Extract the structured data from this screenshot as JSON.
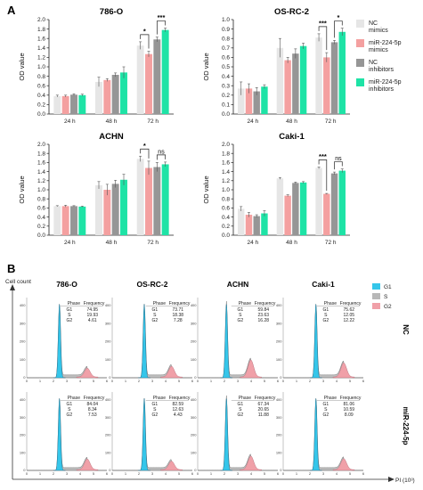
{
  "panels": {
    "a": "A",
    "b": "B"
  },
  "legend": {
    "items": [
      {
        "label": "NC\nmimics",
        "color": "#e6e6e6"
      },
      {
        "label": "miR-224-5p\nmimics",
        "color": "#f4a0a0"
      },
      {
        "label": "NC\ninhibitors",
        "color": "#969696"
      },
      {
        "label": "miR-224-5p\ninhibitors",
        "color": "#1ee3a6"
      }
    ]
  },
  "chart_data": [
    {
      "type": "bar",
      "title": "786-O",
      "ylabel": "OD value",
      "categories": [
        "24 h",
        "48 h",
        "72 h"
      ],
      "ylim": [
        0,
        2.0
      ],
      "yticks": [
        "0.0",
        "0.2",
        "0.4",
        "0.6",
        "0.8",
        "1.0",
        "1.2",
        "1.4",
        "1.6",
        "1.8",
        "2.0"
      ],
      "series": [
        {
          "name": "NC mimics",
          "values": [
            0.38,
            0.68,
            1.45
          ],
          "err": [
            0.02,
            0.1,
            0.08
          ]
        },
        {
          "name": "miR-224-5p mimics",
          "values": [
            0.38,
            0.72,
            1.27
          ],
          "err": [
            0.02,
            0.03,
            0.06
          ]
        },
        {
          "name": "NC inhibitors",
          "values": [
            0.41,
            0.83,
            1.58
          ],
          "err": [
            0.02,
            0.04,
            0.05
          ]
        },
        {
          "name": "miR-224-5p inhibitors",
          "values": [
            0.4,
            0.88,
            1.78
          ],
          "err": [
            0.02,
            0.12,
            0.04
          ]
        }
      ],
      "annotations": [
        {
          "text": "*",
          "group": 2,
          "from": 0,
          "to": 1
        },
        {
          "text": "***",
          "group": 2,
          "from": 2,
          "to": 3
        }
      ]
    },
    {
      "type": "bar",
      "title": "OS-RC-2",
      "ylabel": "OD value",
      "categories": [
        "24 h",
        "48 h",
        "72 h"
      ],
      "ylim": [
        0,
        1.0
      ],
      "yticks": [
        "0.0",
        "0.1",
        "0.2",
        "0.3",
        "0.4",
        "0.5",
        "0.6",
        "0.7",
        "0.8",
        "0.9",
        "1.0"
      ],
      "series": [
        {
          "name": "NC mimics",
          "values": [
            0.27,
            0.7,
            0.81
          ],
          "err": [
            0.07,
            0.1,
            0.04
          ]
        },
        {
          "name": "miR-224-5p mimics",
          "values": [
            0.27,
            0.57,
            0.6
          ],
          "err": [
            0.05,
            0.03,
            0.05
          ]
        },
        {
          "name": "NC inhibitors",
          "values": [
            0.24,
            0.64,
            0.76
          ],
          "err": [
            0.04,
            0.05,
            0.02
          ]
        },
        {
          "name": "miR-224-5p inhibitors",
          "values": [
            0.29,
            0.72,
            0.87
          ],
          "err": [
            0.02,
            0.03,
            0.04
          ]
        }
      ],
      "annotations": [
        {
          "text": "***",
          "group": 2,
          "from": 0,
          "to": 1
        },
        {
          "text": "*",
          "group": 2,
          "from": 2,
          "to": 3
        }
      ]
    },
    {
      "type": "bar",
      "title": "ACHN",
      "ylabel": "OD value",
      "categories": [
        "24 h",
        "48 h",
        "72 h"
      ],
      "ylim": [
        0,
        2.0
      ],
      "yticks": [
        "0.0",
        "0.2",
        "0.4",
        "0.6",
        "0.8",
        "1.0",
        "1.2",
        "1.4",
        "1.6",
        "1.8",
        "2.0"
      ],
      "series": [
        {
          "name": "NC mimics",
          "values": [
            0.64,
            1.1,
            1.68
          ],
          "err": [
            0.01,
            0.08,
            0.06
          ]
        },
        {
          "name": "miR-224-5p mimics",
          "values": [
            0.64,
            1.0,
            1.48
          ],
          "err": [
            0.02,
            0.12,
            0.15
          ]
        },
        {
          "name": "NC inhibitors",
          "values": [
            0.64,
            1.13,
            1.5
          ],
          "err": [
            0.01,
            0.08,
            0.1
          ]
        },
        {
          "name": "miR-224-5p inhibitors",
          "values": [
            0.63,
            1.22,
            1.56
          ],
          "err": [
            0.01,
            0.12,
            0.05
          ]
        }
      ],
      "annotations": [
        {
          "text": "*",
          "group": 2,
          "from": 0,
          "to": 1
        },
        {
          "text": "ns",
          "group": 2,
          "from": 2,
          "to": 3
        }
      ]
    },
    {
      "type": "bar",
      "title": "Caki-1",
      "ylabel": "OD value",
      "categories": [
        "24 h",
        "48 h",
        "72 h"
      ],
      "ylim": [
        0,
        2.0
      ],
      "yticks": [
        "0.0",
        "0.2",
        "0.4",
        "0.6",
        "0.8",
        "1.0",
        "1.2",
        "1.4",
        "1.6",
        "1.8",
        "2.0"
      ],
      "series": [
        {
          "name": "NC mimics",
          "values": [
            0.58,
            1.25,
            1.48
          ],
          "err": [
            0.05,
            0.02,
            0.02
          ]
        },
        {
          "name": "miR-224-5p mimics",
          "values": [
            0.45,
            0.87,
            0.91
          ],
          "err": [
            0.05,
            0.02,
            0.01
          ]
        },
        {
          "name": "NC inhibitors",
          "values": [
            0.42,
            1.15,
            1.36
          ],
          "err": [
            0.03,
            0.02,
            0.03
          ]
        },
        {
          "name": "miR-224-5p inhibitors",
          "values": [
            0.48,
            1.16,
            1.42
          ],
          "err": [
            0.06,
            0.02,
            0.04
          ]
        }
      ],
      "annotations": [
        {
          "text": "***",
          "group": 2,
          "from": 0,
          "to": 1
        },
        {
          "text": "ns",
          "group": 2,
          "from": 2,
          "to": 3
        }
      ]
    }
  ],
  "flow": {
    "ylabel": "Cell count",
    "xlabel": "PI (10³)",
    "legend": [
      {
        "label": "G1",
        "color": "#35c6ea"
      },
      {
        "label": "S",
        "color": "#b8b8b8"
      },
      {
        "label": "G2",
        "color": "#f0a0a8"
      }
    ],
    "rows": [
      "NC",
      "miR-224-5p"
    ],
    "columns": [
      "786-O",
      "OS-RC-2",
      "ACHN",
      "Caki-1"
    ],
    "header": [
      "Phase",
      "Frequency"
    ],
    "xticks": [
      "0",
      "1",
      "2",
      "3",
      "4",
      "5",
      "6"
    ],
    "yticks": [
      "0",
      "100",
      "200",
      "300",
      "400"
    ],
    "cells": [
      [
        {
          "g1": "74.95",
          "s": "19.93",
          "g2": "4.61"
        },
        {
          "g1": "73.71",
          "s": "18.38",
          "g2": "7.28"
        },
        {
          "g1": "59.84",
          "s": "23.63",
          "g2": "16.28"
        },
        {
          "g1": "75.62",
          "s": "12.05",
          "g2": "12.22"
        }
      ],
      [
        {
          "g1": "84.04",
          "s": "8.34",
          "g2": "7.53"
        },
        {
          "g1": "82.59",
          "s": "12.63",
          "g2": "4.43"
        },
        {
          "g1": "67.34",
          "s": "20.65",
          "g2": "11.88"
        },
        {
          "g1": "81.06",
          "s": "10.59",
          "g2": "8.09"
        }
      ]
    ]
  }
}
